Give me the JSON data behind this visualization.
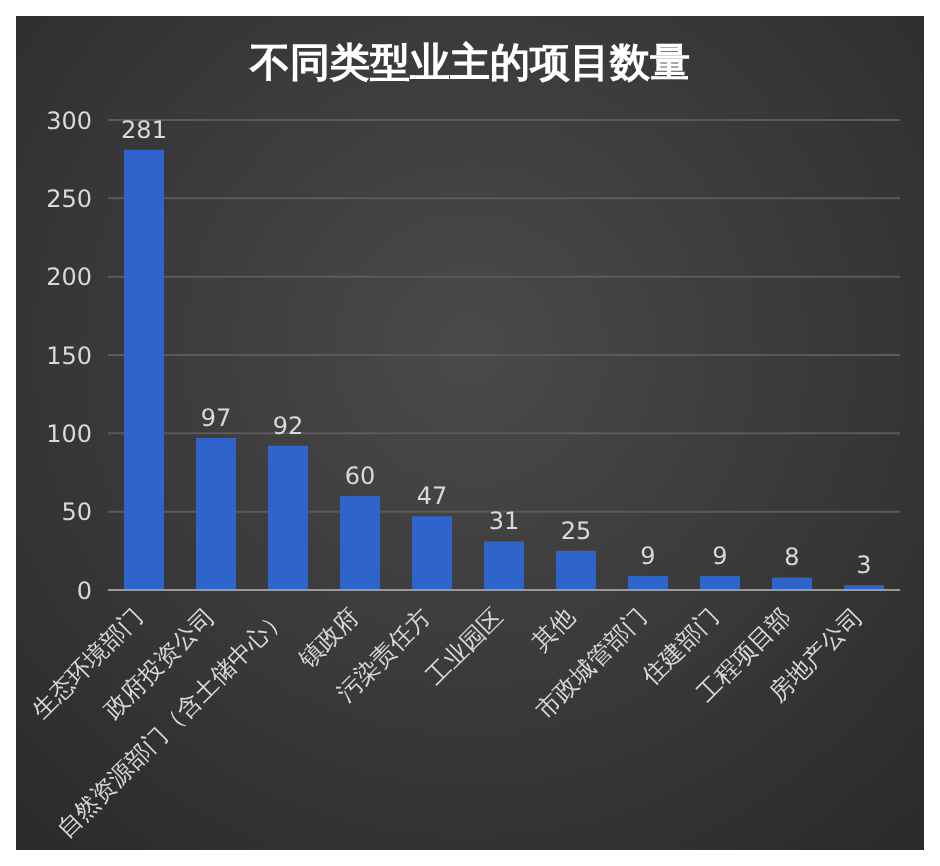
{
  "chart_data": {
    "type": "bar",
    "title": "不同类型业主的项目数量",
    "categories": [
      "生态环境部门",
      "政府投资公司",
      "自然资源部门（含土储中心）",
      "镇政府",
      "污染责任方",
      "工业园区",
      "其他",
      "市政城管部门",
      "住建部门",
      "工程项目部",
      "房地产公司"
    ],
    "values": [
      281,
      97,
      92,
      60,
      47,
      31,
      25,
      9,
      9,
      8,
      3
    ],
    "color": "#2e64cc",
    "ylim": [
      0,
      300
    ],
    "yticks": [
      0,
      50,
      100,
      150,
      200,
      250,
      300
    ],
    "grid": "y",
    "data_labels": true
  }
}
